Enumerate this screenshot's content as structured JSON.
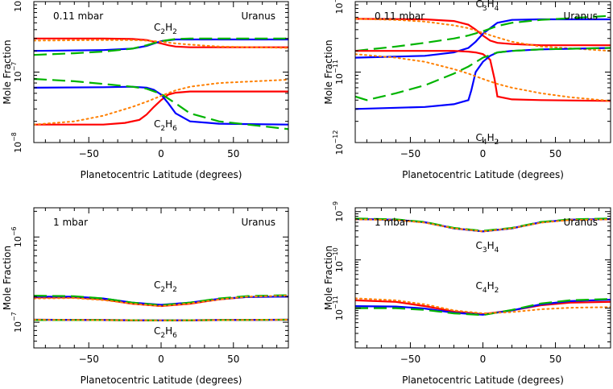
{
  "chart_data": [
    {
      "type": "line",
      "ylabel": "Mole Fraction",
      "xlabel": "Planetocentric Latitude (degrees)",
      "pressure_label": "0.11 mbar",
      "planet_label": "Uranus",
      "xlim": [
        -88,
        88
      ],
      "xticks": [
        -50,
        0,
        50
      ],
      "ylim": [
        1e-08,
        1e-06
      ],
      "yscale": "log",
      "yticks": [
        {
          "base": "10",
          "exp": "-8",
          "value": 1e-08
        },
        {
          "base": "10",
          "exp": "-7",
          "value": 1e-07
        },
        {
          "base": "10",
          "exp": "-6",
          "value": 1e-06
        }
      ],
      "annotations": [
        {
          "base": "C",
          "sub1": "2",
          "mid": "H",
          "sub2": "2",
          "x": -5,
          "y": 3.9e-07
        },
        {
          "base": "C",
          "sub1": "2",
          "mid": "H",
          "sub2": "6",
          "x": -5,
          "y": 1.65e-08
        }
      ],
      "series": [
        {
          "color": "#ff0000",
          "dash": "solid",
          "x": [
            -88,
            -40,
            -20,
            -10,
            -5,
            0,
            5,
            10,
            20,
            40,
            88
          ],
          "y": [
            3e-07,
            3e-07,
            2.95e-07,
            2.85e-07,
            2.7e-07,
            2.55e-07,
            2.4e-07,
            2.3e-07,
            2.25e-07,
            2.25e-07,
            2.25e-07
          ]
        },
        {
          "color": "#0000ff",
          "dash": "solid",
          "x": [
            -88,
            -40,
            -20,
            -10,
            0,
            10,
            20,
            40,
            88
          ],
          "y": [
            2e-07,
            2.05e-07,
            2.15e-07,
            2.35e-07,
            2.75e-07,
            2.9e-07,
            2.9e-07,
            2.9e-07,
            2.9e-07
          ]
        },
        {
          "color": "#00b400",
          "dash": "long",
          "x": [
            -88,
            -60,
            -40,
            -20,
            -10,
            0,
            10,
            20,
            40,
            88
          ],
          "y": [
            1.75e-07,
            1.85e-07,
            1.95e-07,
            2.15e-07,
            2.4e-07,
            2.75e-07,
            2.95e-07,
            3e-07,
            3e-07,
            3e-07
          ]
        },
        {
          "color": "#ff7f00",
          "dash": "dot",
          "x": [
            -88,
            -40,
            -20,
            -10,
            0,
            10,
            20,
            40,
            88
          ],
          "y": [
            2.8e-07,
            2.85e-07,
            2.85e-07,
            2.8e-07,
            2.7e-07,
            2.55e-07,
            2.45e-07,
            2.3e-07,
            2.2e-07
          ]
        },
        {
          "color": "#ff0000",
          "dash": "solid",
          "x": [
            -88,
            -40,
            -25,
            -15,
            -10,
            -5,
            0,
            5,
            10,
            20,
            40,
            88
          ],
          "y": [
            1.8e-08,
            1.8e-08,
            1.9e-08,
            2.1e-08,
            2.5e-08,
            3.2e-08,
            4e-08,
            4.8e-08,
            5.1e-08,
            5.3e-08,
            5.3e-08,
            5.3e-08
          ]
        },
        {
          "color": "#0000ff",
          "dash": "solid",
          "x": [
            -88,
            -40,
            -20,
            -10,
            -5,
            0,
            5,
            10,
            20,
            40,
            88
          ],
          "y": [
            6e-08,
            6.1e-08,
            6.2e-08,
            6e-08,
            5.6e-08,
            4.8e-08,
            3.6e-08,
            2.6e-08,
            2e-08,
            1.85e-08,
            1.8e-08
          ]
        },
        {
          "color": "#00b400",
          "dash": "long",
          "x": [
            -88,
            -60,
            -40,
            -20,
            -10,
            0,
            10,
            20,
            40,
            88
          ],
          "y": [
            8e-08,
            7.4e-08,
            6.8e-08,
            6.2e-08,
            5.8e-08,
            4.9e-08,
            3.6e-08,
            2.6e-08,
            2e-08,
            1.55e-08
          ]
        },
        {
          "color": "#ff7f00",
          "dash": "dot",
          "x": [
            -88,
            -60,
            -40,
            -20,
            -10,
            0,
            10,
            20,
            40,
            88
          ],
          "y": [
            1.8e-08,
            2e-08,
            2.4e-08,
            3.2e-08,
            3.8e-08,
            4.6e-08,
            5.5e-08,
            6.2e-08,
            7e-08,
            7.8e-08
          ]
        }
      ]
    },
    {
      "type": "line",
      "ylabel": "Mole Fraction",
      "xlabel": "Planetocentric Latitude (degrees)",
      "pressure_label": "0.11 mbar",
      "planet_label": "Uranus",
      "xlim": [
        -88,
        88
      ],
      "xticks": [
        -50,
        0,
        50
      ],
      "ylim": [
        1e-12,
        1e-10
      ],
      "yscale": "log",
      "yticks": [
        {
          "base": "10",
          "exp": "-12",
          "value": 1e-12
        },
        {
          "base": "10",
          "exp": "-11",
          "value": 1e-11
        },
        {
          "base": "10",
          "exp": "-10",
          "value": 1e-10
        }
      ],
      "annotations": [
        {
          "base": "C",
          "sub1": "3",
          "mid": "H",
          "sub2": "4",
          "x": -5,
          "y": 8.3e-11
        },
        {
          "base": "C",
          "sub1": "4",
          "mid": "H",
          "sub2": "2",
          "x": -5,
          "y": 1.05e-12
        }
      ],
      "series": [
        {
          "color": "#ff0000",
          "dash": "solid",
          "x": [
            -88,
            -40,
            -20,
            -10,
            -5,
            0,
            5,
            10,
            20,
            40,
            88
          ],
          "y": [
            5.7e-11,
            5.6e-11,
            5.3e-11,
            4.7e-11,
            4e-11,
            3.3e-11,
            2.8e-11,
            2.6e-11,
            2.5e-11,
            2.4e-11,
            2.4e-11
          ]
        },
        {
          "color": "#0000ff",
          "dash": "solid",
          "x": [
            -88,
            -40,
            -20,
            -10,
            -5,
            0,
            5,
            10,
            20,
            40,
            88
          ],
          "y": [
            1.6e-11,
            1.7e-11,
            1.9e-11,
            2.2e-11,
            2.7e-11,
            3.5e-11,
            4.2e-11,
            5e-11,
            5.5e-11,
            5.6e-11,
            5.6e-11
          ]
        },
        {
          "color": "#00b400",
          "dash": "long",
          "x": [
            -88,
            -60,
            -40,
            -20,
            -10,
            0,
            10,
            20,
            40,
            88
          ],
          "y": [
            2e-11,
            2.3e-11,
            2.6e-11,
            3e-11,
            3.3e-11,
            3.8e-11,
            4.5e-11,
            5e-11,
            5.5e-11,
            6.3e-11
          ]
        },
        {
          "color": "#ff7f00",
          "dash": "dot",
          "x": [
            -88,
            -60,
            -40,
            -20,
            -10,
            0,
            10,
            20,
            40,
            88
          ],
          "y": [
            5.7e-11,
            5.5e-11,
            5.2e-11,
            4.6e-11,
            4.2e-11,
            3.6e-11,
            3.1e-11,
            2.7e-11,
            2.3e-11,
            2e-11
          ]
        },
        {
          "color": "#ff0000",
          "dash": "solid",
          "x": [
            -88,
            -40,
            -20,
            -10,
            -5,
            0,
            5,
            8,
            10,
            20,
            40,
            88
          ],
          "y": [
            2e-11,
            2e-11,
            2e-11,
            1.95e-11,
            1.9e-11,
            1.8e-11,
            1.5e-11,
            8e-12,
            4.5e-12,
            4.1e-12,
            4e-12,
            3.9e-12
          ]
        },
        {
          "color": "#0000ff",
          "dash": "solid",
          "x": [
            -88,
            -40,
            -20,
            -10,
            -8,
            -5,
            0,
            5,
            10,
            20,
            40,
            88
          ],
          "y": [
            3e-12,
            3.2e-12,
            3.5e-12,
            4e-12,
            5.5e-12,
            1e-11,
            1.4e-11,
            1.7e-11,
            1.9e-11,
            2e-11,
            2.1e-11,
            2.2e-11
          ]
        },
        {
          "color": "#00b400",
          "dash": "long",
          "x": [
            -88,
            -80,
            -60,
            -40,
            -20,
            -10,
            0,
            10,
            20,
            40,
            88
          ],
          "y": [
            4.5e-12,
            4e-12,
            5e-12,
            6.5e-12,
            9.5e-12,
            1.2e-11,
            1.6e-11,
            1.9e-11,
            2e-11,
            2.1e-11,
            2.2e-11
          ]
        },
        {
          "color": "#ff7f00",
          "dash": "dot",
          "x": [
            -88,
            -60,
            -40,
            -20,
            -10,
            0,
            10,
            20,
            40,
            60,
            88
          ],
          "y": [
            1.8e-11,
            1.6e-11,
            1.4e-11,
            1.1e-11,
            9.5e-12,
            8e-12,
            6.8e-12,
            6e-12,
            5e-12,
            4.4e-12,
            3.9e-12
          ]
        }
      ]
    },
    {
      "type": "line",
      "ylabel": "Mole Fraction",
      "xlabel": "Planetocentric Latitude (degrees)",
      "pressure_label": "1 mbar",
      "planet_label": "Uranus",
      "xlim": [
        -88,
        88
      ],
      "xticks": [
        -50,
        0,
        50
      ],
      "ylim": [
        5e-08,
        2.2e-06
      ],
      "yscale": "log",
      "yticks": [
        {
          "base": "10",
          "exp": "-7",
          "value": 1e-07
        },
        {
          "base": "10",
          "exp": "-6",
          "value": 1e-06
        }
      ],
      "annotations": [
        {
          "base": "C",
          "sub1": "2",
          "mid": "H",
          "sub2": "2",
          "x": -5,
          "y": 2.5e-07
        },
        {
          "base": "C",
          "sub1": "2",
          "mid": "H",
          "sub2": "6",
          "x": -5,
          "y": 7.2e-08
        }
      ],
      "series": [
        {
          "color": "#ff0000",
          "dash": "solid",
          "x": [
            -88,
            -60,
            -40,
            -20,
            0,
            20,
            40,
            60,
            88
          ],
          "y": [
            1.95e-07,
            1.95e-07,
            1.85e-07,
            1.65e-07,
            1.55e-07,
            1.65e-07,
            1.85e-07,
            1.98e-07,
            2e-07
          ]
        },
        {
          "color": "#0000ff",
          "dash": "solid",
          "x": [
            -88,
            -60,
            -40,
            -20,
            0,
            20,
            40,
            60,
            88
          ],
          "y": [
            2e-07,
            2e-07,
            1.9e-07,
            1.7e-07,
            1.6e-07,
            1.7e-07,
            1.88e-07,
            1.98e-07,
            2e-07
          ]
        },
        {
          "color": "#00b400",
          "dash": "long",
          "x": [
            -88,
            -60,
            -40,
            -20,
            0,
            20,
            40,
            60,
            88
          ],
          "y": [
            2.05e-07,
            2.02e-07,
            1.9e-07,
            1.7e-07,
            1.58e-07,
            1.7e-07,
            1.9e-07,
            2.03e-07,
            2.08e-07
          ]
        },
        {
          "color": "#ff7f00",
          "dash": "dot",
          "x": [
            -88,
            -60,
            -40,
            -20,
            0,
            20,
            40,
            60,
            88
          ],
          "y": [
            1.9e-07,
            1.92e-07,
            1.82e-07,
            1.65e-07,
            1.55e-07,
            1.66e-07,
            1.85e-07,
            2e-07,
            2.05e-07
          ]
        },
        {
          "color": "#ff0000",
          "dash": "solid",
          "x": [
            -88,
            -40,
            0,
            40,
            88
          ],
          "y": [
            1.07e-07,
            1.06e-07,
            1.05e-07,
            1.06e-07,
            1.07e-07
          ]
        },
        {
          "color": "#0000ff",
          "dash": "solid",
          "x": [
            -88,
            -40,
            0,
            40,
            88
          ],
          "y": [
            1.07e-07,
            1.06e-07,
            1.05e-07,
            1.06e-07,
            1.07e-07
          ]
        },
        {
          "color": "#00b400",
          "dash": "long",
          "x": [
            -88,
            -40,
            0,
            40,
            88
          ],
          "y": [
            1.06e-07,
            1.06e-07,
            1.05e-07,
            1.06e-07,
            1.07e-07
          ]
        },
        {
          "color": "#ff7f00",
          "dash": "dot",
          "x": [
            -88,
            -40,
            0,
            40,
            88
          ],
          "y": [
            1.07e-07,
            1.06e-07,
            1.05e-07,
            1.06e-07,
            1.07e-07
          ]
        }
      ]
    },
    {
      "type": "line",
      "ylabel": "Mole Fraction",
      "xlabel": "Planetocentric Latitude (degrees)",
      "pressure_label": "1 mbar",
      "planet_label": "Uranus",
      "xlim": [
        -88,
        88
      ],
      "xticks": [
        -50,
        0,
        50
      ],
      "ylim": [
        1.5e-12,
        1.2e-09
      ],
      "yscale": "log",
      "yticks": [
        {
          "base": "10",
          "exp": "-11",
          "value": 1e-11
        },
        {
          "base": "10",
          "exp": "-10",
          "value": 1e-10
        },
        {
          "base": "10",
          "exp": "-9",
          "value": 1e-09
        }
      ],
      "annotations": [
        {
          "base": "C",
          "sub1": "3",
          "mid": "H",
          "sub2": "4",
          "x": -5,
          "y": 1.7e-10
        },
        {
          "base": "C",
          "sub1": "4",
          "mid": "H",
          "sub2": "2",
          "x": -5,
          "y": 2.5e-11
        }
      ],
      "series": [
        {
          "color": "#ff0000",
          "dash": "solid",
          "x": [
            -88,
            -60,
            -40,
            -20,
            0,
            20,
            40,
            60,
            88
          ],
          "y": [
            7e-10,
            6.8e-10,
            6e-10,
            4.5e-10,
            3.9e-10,
            4.5e-10,
            6e-10,
            6.8e-10,
            7e-10
          ]
        },
        {
          "color": "#0000ff",
          "dash": "solid",
          "x": [
            -88,
            -60,
            -40,
            -20,
            0,
            20,
            40,
            60,
            88
          ],
          "y": [
            7e-10,
            6.8e-10,
            6e-10,
            4.5e-10,
            3.9e-10,
            4.5e-10,
            6e-10,
            6.8e-10,
            7e-10
          ]
        },
        {
          "color": "#00b400",
          "dash": "long",
          "x": [
            -88,
            -60,
            -40,
            -20,
            0,
            20,
            40,
            60,
            88
          ],
          "y": [
            7.2e-10,
            6.9e-10,
            6.1e-10,
            4.6e-10,
            4e-10,
            4.6e-10,
            6.1e-10,
            6.9e-10,
            7.2e-10
          ]
        },
        {
          "color": "#ff7f00",
          "dash": "dot",
          "x": [
            -88,
            -60,
            -40,
            -20,
            0,
            20,
            40,
            60,
            88
          ],
          "y": [
            6.9e-10,
            6.7e-10,
            5.9e-10,
            4.5e-10,
            3.9e-10,
            4.5e-10,
            5.9e-10,
            6.7e-10,
            6.9e-10
          ]
        },
        {
          "color": "#ff0000",
          "dash": "solid",
          "x": [
            -88,
            -60,
            -40,
            -20,
            0,
            20,
            40,
            60,
            88
          ],
          "y": [
            1.45e-11,
            1.35e-11,
            1.1e-11,
            8.5e-12,
            7.5e-12,
            9e-12,
            1.15e-11,
            1.3e-11,
            1.35e-11
          ]
        },
        {
          "color": "#0000ff",
          "dash": "solid",
          "x": [
            -88,
            -60,
            -40,
            -20,
            0,
            20,
            40,
            60,
            88
          ],
          "y": [
            1.1e-11,
            1.08e-11,
            9.8e-12,
            8e-12,
            7.3e-12,
            9e-12,
            1.2e-11,
            1.4e-11,
            1.5e-11
          ]
        },
        {
          "color": "#00b400",
          "dash": "long",
          "x": [
            -88,
            -60,
            -40,
            -20,
            0,
            20,
            40,
            60,
            88
          ],
          "y": [
            1e-11,
            1e-11,
            9.2e-12,
            7.8e-12,
            7.2e-12,
            9.2e-12,
            1.25e-11,
            1.45e-11,
            1.55e-11
          ]
        },
        {
          "color": "#ff7f00",
          "dash": "dot",
          "x": [
            -88,
            -60,
            -40,
            -20,
            0,
            20,
            40,
            60,
            88
          ],
          "y": [
            1.6e-11,
            1.45e-11,
            1.2e-11,
            9e-12,
            7.8e-12,
            8.3e-12,
            9.5e-12,
            1.02e-11,
            1.05e-11
          ]
        }
      ]
    }
  ]
}
